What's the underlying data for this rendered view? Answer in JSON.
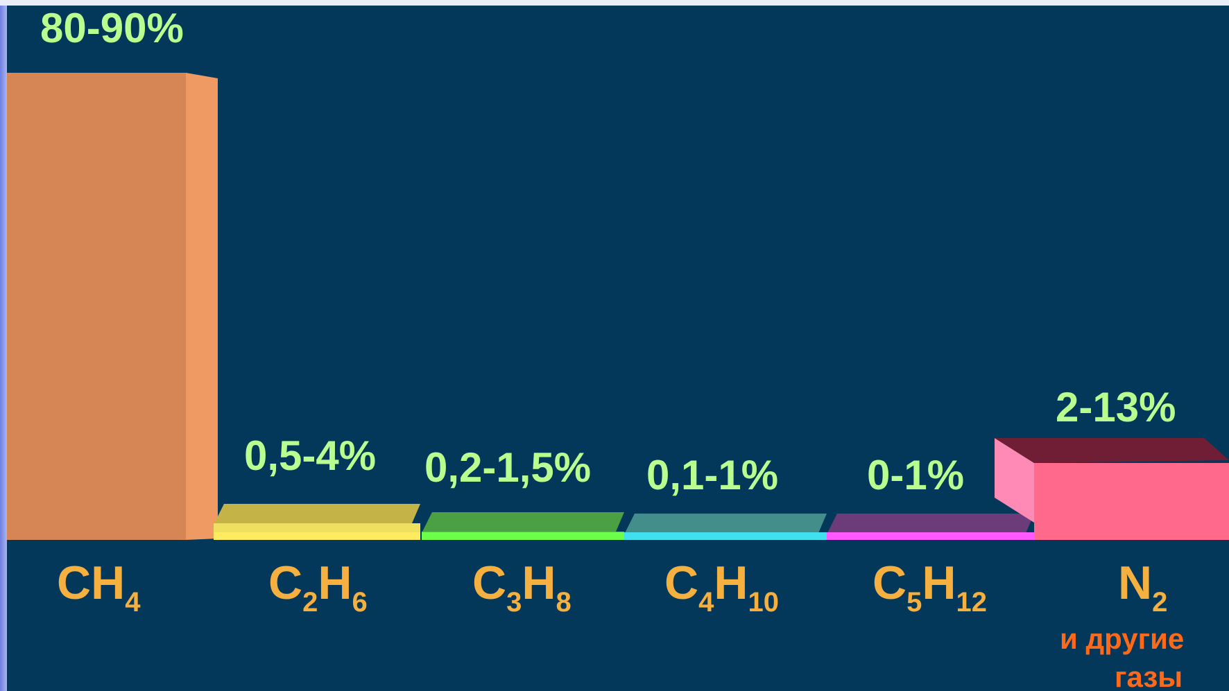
{
  "chart_data": {
    "type": "bar",
    "categories": [
      {
        "base": "CH",
        "sub": "4",
        "note": []
      },
      {
        "base": "C",
        "sub1": "2",
        "mid": "H",
        "sub2": "6",
        "note": []
      },
      {
        "base": "C",
        "sub1": "3",
        "mid": "H",
        "sub2": "8",
        "note": []
      },
      {
        "base": "C",
        "sub1": "4",
        "mid": "H",
        "sub2": "10",
        "note": []
      },
      {
        "base": "C",
        "sub1": "5",
        "mid": "H",
        "sub2": "12",
        "note": []
      },
      {
        "base": "N",
        "sub": "2",
        "note": [
          "и другие",
          "газы"
        ]
      }
    ],
    "value_labels": [
      "80-90%",
      "0,5-4%",
      "0,2-1,5%",
      "0,1-1%",
      "0-1%",
      "2-13%"
    ],
    "values": [
      85,
      2.25,
      0.85,
      0.55,
      0.5,
      7.5
    ],
    "colors": {
      "front": [
        "#d68654",
        "#efe15f",
        "#4ccb4f",
        "#3e8c8b",
        "#7c3c8b",
        "#ff6a8c"
      ],
      "top": [
        "#c98554",
        "#c4b448",
        "#4ca044",
        "#438e8b",
        "#6c3b7a",
        "#701e35"
      ],
      "side": [
        "#ef9a63",
        "#dfd661",
        "#5fdd64",
        "#59b1b0",
        "#8a47a0",
        "#ff8ab6"
      ],
      "edge": [
        "#e68d58",
        "#ffeb60",
        "#6eff4a",
        "#42dff1",
        "#ff59ff",
        "#ff6e94"
      ]
    },
    "ylim": [
      0,
      90
    ],
    "xlabel": "",
    "ylabel": "",
    "title": ""
  }
}
